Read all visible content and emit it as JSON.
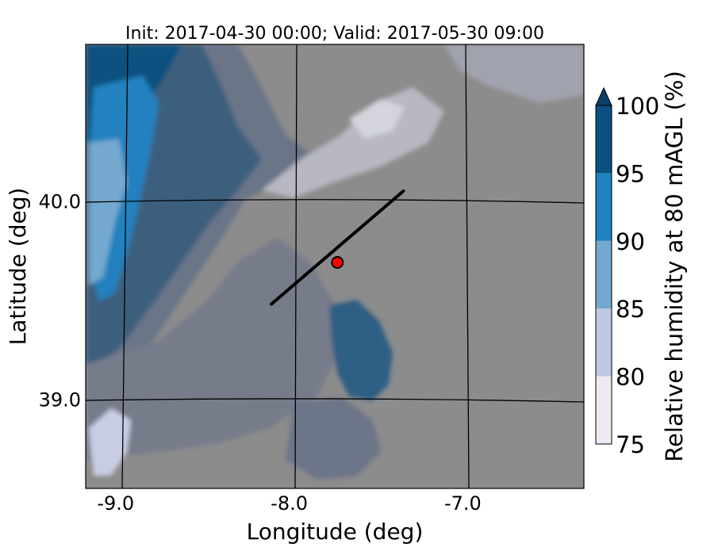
{
  "chart_data": {
    "type": "heatmap",
    "title": "Init: 2017-04-30 00:00; Valid: 2017-05-30 09:00",
    "xlabel": "Longitude (deg)",
    "ylabel": "Latitude (deg)",
    "xlim": [
      -9.2,
      -6.33
    ],
    "ylim": [
      38.55,
      40.79
    ],
    "x_ticks": [
      -9.0,
      -8.0,
      -7.0
    ],
    "x_tick_labels": [
      "-9.0",
      "-8.0",
      "-7.0"
    ],
    "y_ticks": [
      39.0,
      40.0
    ],
    "y_tick_labels": [
      "39.0",
      "40.0"
    ],
    "grid": true,
    "colorbar": {
      "label": "Relative humidity at 80 mAGL (%)",
      "levels": [
        75,
        80,
        85,
        90,
        95,
        100
      ],
      "level_labels": [
        "75",
        "80",
        "85",
        "90",
        "95",
        "100"
      ],
      "colors": [
        "#efe9f3",
        "#bec8e2",
        "#74a9cf",
        "#2081be",
        "#0b5180"
      ],
      "extend": "max",
      "extend_color": "#0b3f66",
      "masked_color": "#8c8c8c"
    },
    "transect": {
      "start": [
        -8.13,
        39.48
      ],
      "end": [
        -7.37,
        40.05
      ],
      "color": "#000000"
    },
    "marker": {
      "lon": -7.75,
      "lat": 39.69,
      "color": "#ff0000"
    }
  }
}
